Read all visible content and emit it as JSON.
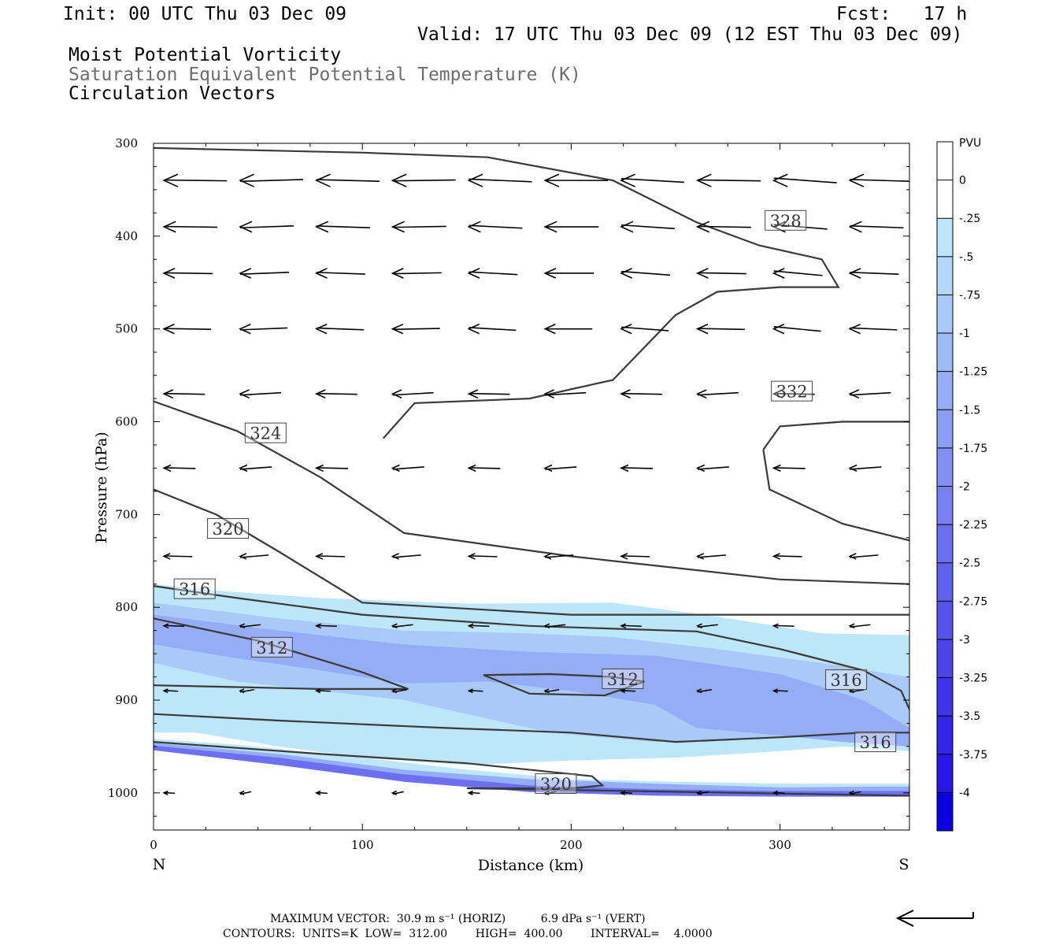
{
  "header": {
    "init": "Init: 00 UTC Thu 03 Dec 09",
    "fcst": "Fcst:   17 h",
    "valid": "Valid: 17 UTC Thu 03 Dec 09 (12 EST Thu 03 Dec 09)",
    "field1": "Moist Potential Vorticity",
    "field2": "Saturation Equivalent Potential Temperature (K)",
    "field3": "Circulation Vectors"
  },
  "chart_data": {
    "type": "heatmap",
    "xlabel": "Distance (km)",
    "ylabel": "Pressure (hPa)",
    "xlim": [
      0,
      362
    ],
    "ylim": [
      300,
      1040
    ],
    "y_scale": "linear, inverted (pressure increases downward)",
    "x_ticks": [
      0,
      100,
      200,
      300
    ],
    "y_ticks": [
      300,
      400,
      500,
      600,
      700,
      800,
      900,
      1000
    ],
    "x_end_labels": {
      "left": "N",
      "right": "S"
    },
    "colorbar": {
      "unit": "PVU",
      "levels": [
        "0",
        "-.25",
        "-.5",
        "-.75",
        "-1",
        "-1.25",
        "-1.5",
        "-1.75",
        "-2",
        "-2.25",
        "-2.5",
        "-2.75",
        "-3",
        "-3.25",
        "-3.5",
        "-3.75",
        "-4"
      ],
      "colors": [
        "#ffffff",
        "#ffffff",
        "#bde6fa",
        "#b3d8fa",
        "#a9caf8",
        "#9fbbf7",
        "#95acf6",
        "#8b9df4",
        "#818ef3",
        "#777ff2",
        "#6c70f0",
        "#6161ef",
        "#5652ee",
        "#4b43ec",
        "#3f34eb",
        "#3325e9",
        "#2616e8",
        "#0a00e6"
      ]
    },
    "mpv_shading": [
      {
        "level": -0.25,
        "color": "#bde6fa",
        "polygon": [
          [
            0,
            775
          ],
          [
            30,
            782
          ],
          [
            80,
            790
          ],
          [
            150,
            796
          ],
          [
            220,
            795
          ],
          [
            270,
            810
          ],
          [
            320,
            828
          ],
          [
            362,
            830
          ],
          [
            362,
            955
          ],
          [
            330,
            950
          ],
          [
            300,
            955
          ],
          [
            250,
            962
          ],
          [
            200,
            965
          ],
          [
            150,
            970
          ],
          [
            100,
            962
          ],
          [
            60,
            950
          ],
          [
            20,
            935
          ],
          [
            0,
            935
          ],
          [
            0,
            775
          ]
        ]
      },
      {
        "level": -0.5,
        "color": "#a9caf8",
        "polygon": [
          [
            0,
            795
          ],
          [
            60,
            812
          ],
          [
            120,
            825
          ],
          [
            180,
            828
          ],
          [
            220,
            832
          ],
          [
            270,
            845
          ],
          [
            320,
            860
          ],
          [
            362,
            875
          ],
          [
            362,
            948
          ],
          [
            320,
            940
          ],
          [
            280,
            942
          ],
          [
            240,
            945
          ],
          [
            190,
            935
          ],
          [
            160,
            920
          ],
          [
            120,
            900
          ],
          [
            80,
            890
          ],
          [
            40,
            880
          ],
          [
            0,
            860
          ],
          [
            0,
            795
          ]
        ]
      },
      {
        "level": -1.0,
        "color": "#95acf6",
        "polygon": [
          [
            0,
            808
          ],
          [
            60,
            825
          ],
          [
            120,
            840
          ],
          [
            180,
            848
          ],
          [
            240,
            852
          ],
          [
            300,
            872
          ],
          [
            340,
            900
          ],
          [
            362,
            930
          ],
          [
            362,
            950
          ],
          [
            330,
            945
          ],
          [
            300,
            938
          ],
          [
            260,
            930
          ],
          [
            240,
            905
          ],
          [
            200,
            890
          ],
          [
            160,
            880
          ],
          [
            120,
            882
          ],
          [
            80,
            868
          ],
          [
            40,
            855
          ],
          [
            0,
            840
          ],
          [
            0,
            808
          ]
        ]
      },
      {
        "level": -0.25,
        "color": "#bde6fa",
        "polygon": [
          [
            0,
            942
          ],
          [
            40,
            948
          ],
          [
            100,
            962
          ],
          [
            150,
            975
          ],
          [
            200,
            985
          ],
          [
            250,
            988
          ],
          [
            300,
            990
          ],
          [
            362,
            990
          ],
          [
            362,
            1002
          ],
          [
            300,
            1002
          ],
          [
            250,
            1000
          ],
          [
            200,
            998
          ],
          [
            150,
            990
          ],
          [
            100,
            975
          ],
          [
            50,
            960
          ],
          [
            0,
            950
          ],
          [
            0,
            942
          ]
        ]
      },
      {
        "level": -1.0,
        "color": "#95acf6",
        "polygon": [
          [
            0,
            946
          ],
          [
            60,
            958
          ],
          [
            120,
            975
          ],
          [
            180,
            985
          ],
          [
            240,
            990
          ],
          [
            300,
            994
          ],
          [
            362,
            993
          ],
          [
            362,
            1003
          ],
          [
            300,
            1003
          ],
          [
            240,
            1001
          ],
          [
            180,
            996
          ],
          [
            120,
            985
          ],
          [
            60,
            968
          ],
          [
            0,
            952
          ],
          [
            0,
            946
          ]
        ]
      },
      {
        "level": -2.0,
        "color": "#6c70f0",
        "polygon": [
          [
            0,
            949
          ],
          [
            60,
            962
          ],
          [
            120,
            980
          ],
          [
            180,
            992
          ],
          [
            240,
            996
          ],
          [
            300,
            998
          ],
          [
            362,
            998
          ],
          [
            362,
            1004
          ],
          [
            300,
            1004
          ],
          [
            240,
            1003
          ],
          [
            180,
            999
          ],
          [
            120,
            988
          ],
          [
            60,
            970
          ],
          [
            0,
            954
          ],
          [
            0,
            949
          ]
        ]
      }
    ],
    "theta_es_contours": [
      {
        "value": 312,
        "label": "312",
        "label_at": [
          48,
          843
        ],
        "points": [
          [
            0,
            812
          ],
          [
            50,
            836
          ],
          [
            100,
            870
          ],
          [
            122,
            888
          ],
          [
            80,
            888
          ],
          [
            40,
            886
          ],
          [
            0,
            884
          ]
        ]
      },
      {
        "value": 312,
        "label": "312",
        "label_at": [
          216,
          877
        ],
        "points": [
          [
            158,
            873
          ],
          [
            190,
            872
          ],
          [
            220,
            875
          ],
          [
            235,
            880
          ],
          [
            216,
            895
          ],
          [
            180,
            893
          ],
          [
            158,
            873
          ]
        ]
      },
      {
        "value": 316,
        "label": "316",
        "label_at": [
          11,
          780
        ],
        "points": [
          [
            0,
            777
          ],
          [
            40,
            790
          ],
          [
            100,
            808
          ],
          [
            180,
            820
          ],
          [
            260,
            826
          ],
          [
            300,
            845
          ],
          [
            340,
            868
          ],
          [
            358,
            890
          ],
          [
            362,
            910
          ]
        ]
      },
      {
        "value": 316,
        "label": "316",
        "label_at": [
          323,
          878
        ],
        "points": []
      },
      {
        "value": 316,
        "label": "316",
        "label_at": [
          337,
          945
        ],
        "points": [
          [
            0,
            915
          ],
          [
            60,
            922
          ],
          [
            140,
            930
          ],
          [
            200,
            935
          ],
          [
            250,
            945
          ],
          [
            300,
            940
          ],
          [
            340,
            935
          ],
          [
            362,
            935
          ]
        ]
      },
      {
        "value": 320,
        "label": "320",
        "label_at": [
          27,
          715
        ],
        "points": [
          [
            0,
            673
          ],
          [
            30,
            700
          ],
          [
            60,
            740
          ],
          [
            100,
            795
          ],
          [
            200,
            808
          ],
          [
            300,
            808
          ],
          [
            362,
            808
          ]
        ]
      },
      {
        "value": 320,
        "label": "320",
        "label_at": [
          184,
          990
        ],
        "points": [
          [
            0,
            945
          ],
          [
            80,
            958
          ],
          [
            150,
            968
          ],
          [
            210,
            982
          ],
          [
            215,
            992
          ],
          [
            200,
            995
          ],
          [
            150,
            995
          ],
          [
            362,
            1003
          ]
        ]
      },
      {
        "value": 324,
        "label": "324",
        "label_at": [
          45,
          612
        ],
        "points": [
          [
            0,
            578
          ],
          [
            40,
            610
          ],
          [
            80,
            660
          ],
          [
            120,
            720
          ],
          [
            200,
            745
          ],
          [
            300,
            770
          ],
          [
            362,
            775
          ]
        ]
      },
      {
        "value": 328,
        "label": "328",
        "label_at": [
          294,
          383
        ],
        "points": [
          [
            110,
            618
          ],
          [
            125,
            580
          ],
          [
            180,
            575
          ],
          [
            220,
            555
          ],
          [
            250,
            485
          ],
          [
            270,
            460
          ],
          [
            300,
            455
          ],
          [
            328,
            455
          ],
          [
            320,
            425
          ],
          [
            290,
            410
          ],
          [
            260,
            385
          ],
          [
            220,
            340
          ],
          [
            160,
            315
          ],
          [
            100,
            310
          ],
          [
            0,
            305
          ]
        ]
      },
      {
        "value": 332,
        "label": "332",
        "label_at": [
          297,
          567
        ],
        "points": [
          [
            292,
            630
          ],
          [
            300,
            605
          ],
          [
            330,
            600
          ],
          [
            362,
            600
          ]
        ]
      },
      {
        "value": 332,
        "label": "",
        "label_at": null,
        "points": [
          [
            292,
            630
          ],
          [
            295,
            673
          ],
          [
            330,
            710
          ],
          [
            362,
            728
          ]
        ]
      }
    ],
    "vector_rows_hpa": [
      340,
      390,
      440,
      500,
      570,
      650,
      745,
      820,
      890,
      1000
    ],
    "max_vector": "MAXIMUM VECTOR:  30.9 m s⁻¹ (HORIZ)          6.9 dPa s⁻¹ (VERT)",
    "contour_info": "CONTOURS:  UNITS=K  LOW=  312.00        HIGH=  400.00        INTERVAL=    4.0000"
  }
}
